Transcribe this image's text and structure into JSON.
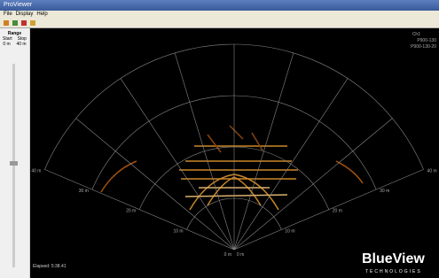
{
  "window": {
    "title": "ProViewer",
    "menu": [
      "File",
      "Display",
      "Help"
    ]
  },
  "range_panel": {
    "title": "Range",
    "headers": [
      "Start",
      "Stop"
    ],
    "values": [
      "0 m",
      "40 m"
    ]
  },
  "sonar": {
    "head_info": [
      "Ch1",
      "P900-130",
      "P900-130-20"
    ],
    "ring_labels": [
      "10 m",
      "20 m",
      "30 m",
      "40 m"
    ],
    "center_labels": [
      "0 m",
      "0 m"
    ],
    "elapsed": "Elapsed: 5:38.41"
  },
  "logo": {
    "name": "BlueView",
    "subtitle": "TECHNOLOGIES"
  }
}
